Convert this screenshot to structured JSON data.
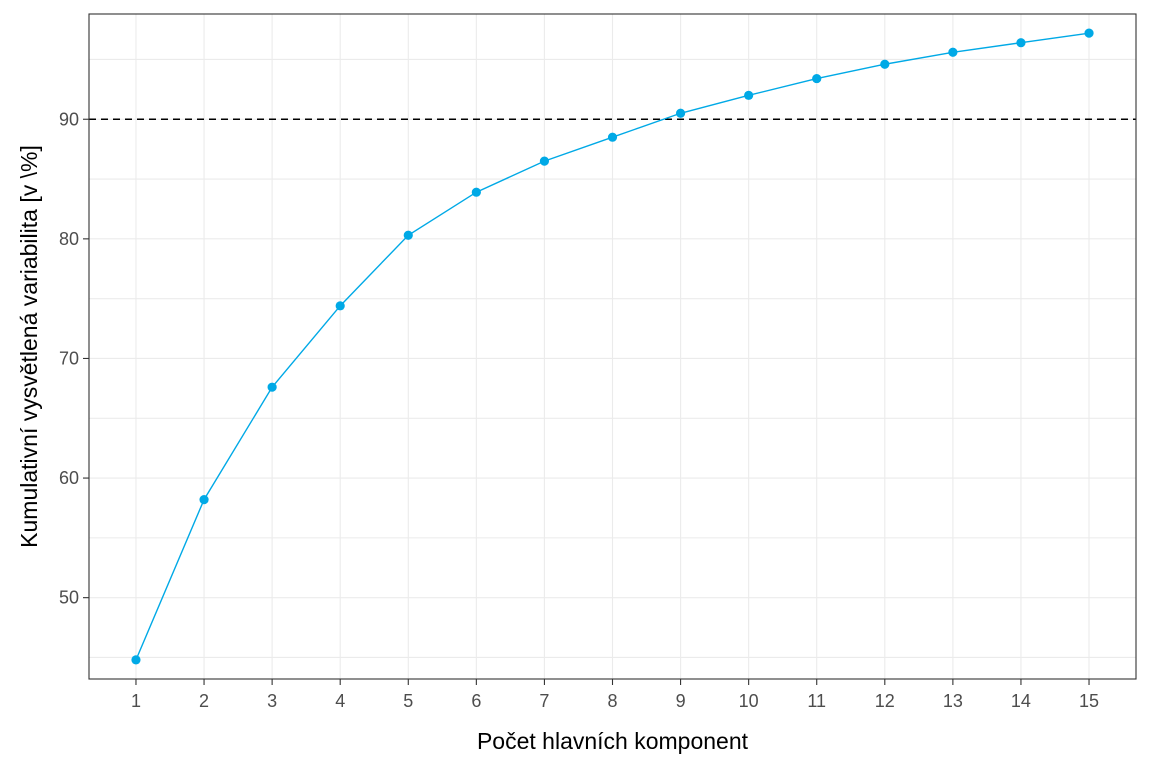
{
  "chart_data": {
    "type": "line",
    "title": "",
    "xlabel": "Počet hlavních komponent",
    "ylabel": "Kumulativní vysvětlená variabilita [v \\%]",
    "x": [
      1,
      2,
      3,
      4,
      5,
      6,
      7,
      8,
      9,
      10,
      11,
      12,
      13,
      14,
      15
    ],
    "x_ticks": [
      "1",
      "2",
      "3",
      "4",
      "5",
      "6",
      "7",
      "8",
      "9",
      "10",
      "11",
      "12",
      "13",
      "14",
      "15"
    ],
    "y_ticks": [
      "50",
      "60",
      "70",
      "80",
      "90"
    ],
    "xlim": [
      0.31,
      15.69
    ],
    "ylim": [
      43.2,
      98.8
    ],
    "series": [
      {
        "values": [
          44.8,
          58.2,
          67.6,
          74.4,
          80.3,
          83.9,
          86.5,
          88.5,
          90.5,
          92.0,
          93.4,
          94.6,
          95.6,
          96.4,
          97.2
        ],
        "color": "#00a9e6"
      }
    ],
    "reference_line": {
      "y": 90,
      "style": "dashed",
      "color": "#000000"
    },
    "grid": true
  }
}
